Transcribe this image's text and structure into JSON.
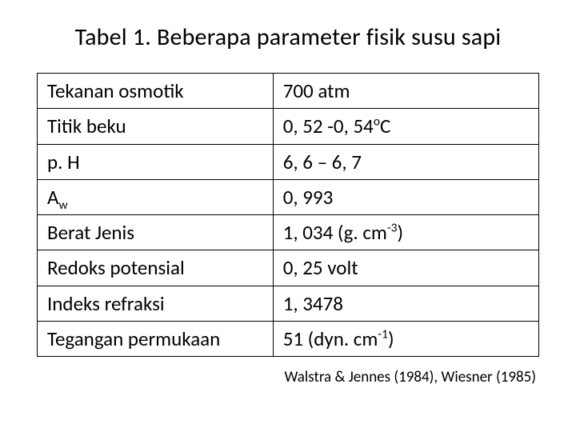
{
  "title": "Tabel 1. Beberapa parameter fisik susu sapi",
  "table": {
    "type": "table",
    "border_color": "#000000",
    "background_color": "#ffffff",
    "text_color": "#000000",
    "cell_fontsize": 25,
    "columns": [
      {
        "id": "param",
        "width_pct": 47
      },
      {
        "id": "value",
        "width_pct": 53
      }
    ],
    "rows": [
      {
        "param": "Tekanan osmotik",
        "value": "700 atm"
      },
      {
        "param": "Titik beku",
        "value_prefix": "0, 52 -0, 54",
        "value_sup": "o",
        "value_suffix": "C"
      },
      {
        "param": "p. H",
        "value": "6, 6 – 6, 7"
      },
      {
        "param_base": "A",
        "param_sub": "w",
        "value": "0, 993"
      },
      {
        "param": "Berat Jenis",
        "value_prefix": "1, 034 (g. cm",
        "value_sup": "-3",
        "value_suffix": ")"
      },
      {
        "param": "Redoks potensial",
        "value": "0, 25 volt"
      },
      {
        "param": "Indeks refraksi",
        "value": "1, 3478"
      },
      {
        "param": "Tegangan permukaan",
        "value_prefix": "51 (dyn. cm",
        "value_sup": "-1",
        "value_suffix": ")"
      }
    ]
  },
  "citation": "Walstra & Jennes (1984), Wiesner (1985)"
}
